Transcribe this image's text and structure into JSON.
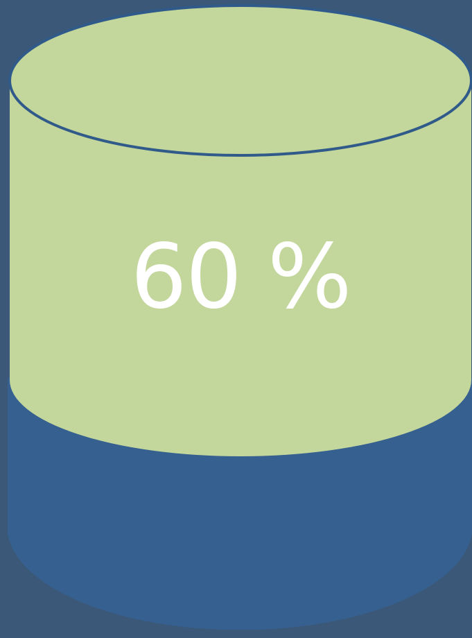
{
  "gauge": {
    "label": "60 %",
    "fill_fraction": 0.6
  },
  "colors": {
    "background": "#3b5878",
    "fill": "#c3d69b",
    "base": "#36608f",
    "outline": "#2f5a8a",
    "text": "#ffffff"
  }
}
